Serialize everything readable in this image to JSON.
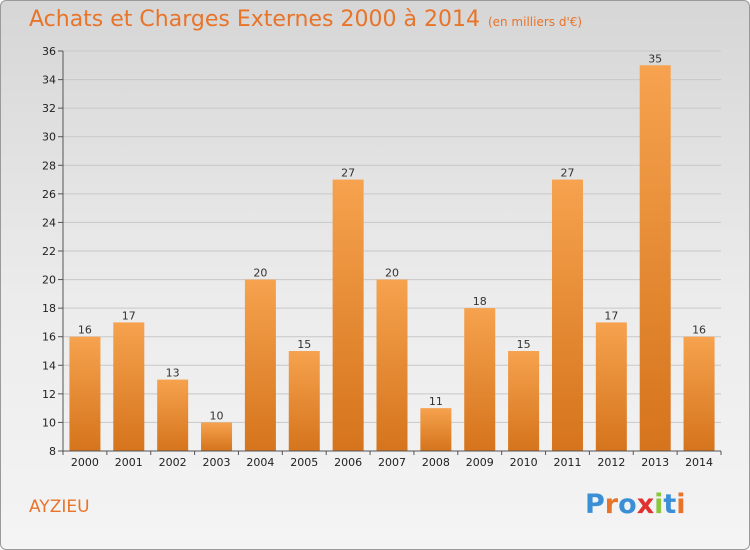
{
  "header": {
    "title": "Achats et Charges Externes 2000 à 2014",
    "subtitle": "(en milliers d'€)"
  },
  "footer": {
    "place": "AYZIEU",
    "logo": "Proxiti",
    "logo_colors": [
      "#3a8fd6",
      "#e8742a",
      "#3a8fd6",
      "#e03030",
      "#8cc63f",
      "#3a8fd6",
      "#e8742a"
    ]
  },
  "colors": {
    "bar_light": "#f6a24e",
    "bar_dark": "#d5741c",
    "accent": "#e8742a"
  },
  "chart_data": {
    "type": "bar",
    "categories": [
      "2000",
      "2001",
      "2002",
      "2003",
      "2004",
      "2005",
      "2006",
      "2007",
      "2008",
      "2009",
      "2010",
      "2011",
      "2012",
      "2013",
      "2014"
    ],
    "values": [
      16,
      17,
      13,
      10,
      20,
      15,
      27,
      20,
      11,
      18,
      15,
      27,
      17,
      35,
      16
    ],
    "ylim": [
      8,
      36
    ],
    "yticks": [
      8,
      10,
      12,
      14,
      16,
      18,
      20,
      22,
      24,
      26,
      28,
      30,
      32,
      34,
      36
    ],
    "grid": true,
    "legend": "none"
  }
}
